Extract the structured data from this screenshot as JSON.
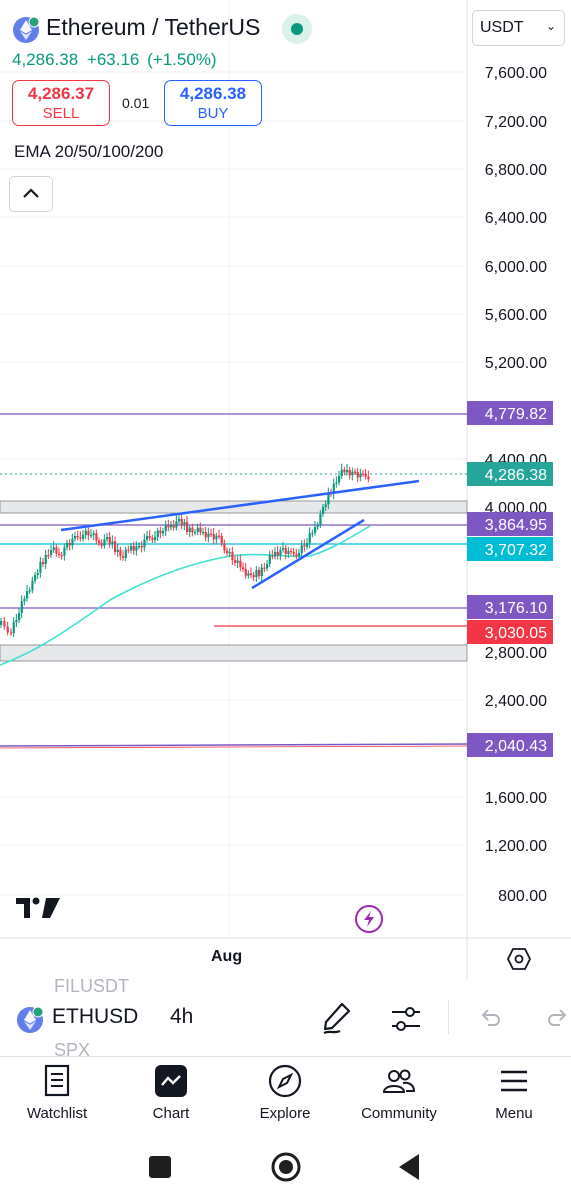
{
  "header": {
    "title": "Ethereum / TetherUS",
    "price": "4,286.38",
    "change": "+63.16",
    "change_pct": "(+1.50%)",
    "currency": "USDT"
  },
  "trade": {
    "sell_price": "4,286.37",
    "sell_label": "SELL",
    "spread": "0.01",
    "buy_price": "4,286.38",
    "buy_label": "BUY"
  },
  "indicator": {
    "label": "EMA 20/50/100/200"
  },
  "chart": {
    "x_axis_label": "Aug",
    "y_ticks": [
      "7,600.00",
      "7,200.00",
      "6,800.00",
      "6,400.00",
      "6,000.00",
      "5,600.00",
      "5,200.00",
      "4,400.00",
      "4,000.00",
      "2,800.00",
      "2,400.00",
      "1,600.00",
      "1,200.00",
      "800.00"
    ],
    "price_tags": [
      {
        "label": "4,779.82",
        "color": "#7e57c2"
      },
      {
        "label": "4,286.38",
        "color": "#26a69a"
      },
      {
        "label": "3,864.95",
        "color": "#7e57c2"
      },
      {
        "label": "3,707.32",
        "color": "#00bcd4"
      },
      {
        "label": "3,176.10",
        "color": "#7e57c2"
      },
      {
        "label": "3,030.05",
        "color": "#f23645"
      },
      {
        "label": "2,040.43",
        "color": "#7e57c2"
      }
    ]
  },
  "symbol_bar": {
    "ghost_above": "FILUSDT",
    "symbol": "ETHUSD",
    "ghost_below": "SPX",
    "interval": "4h"
  },
  "nav": {
    "watchlist": "Watchlist",
    "chart": "Chart",
    "explore": "Explore",
    "community": "Community",
    "menu": "Menu"
  }
}
